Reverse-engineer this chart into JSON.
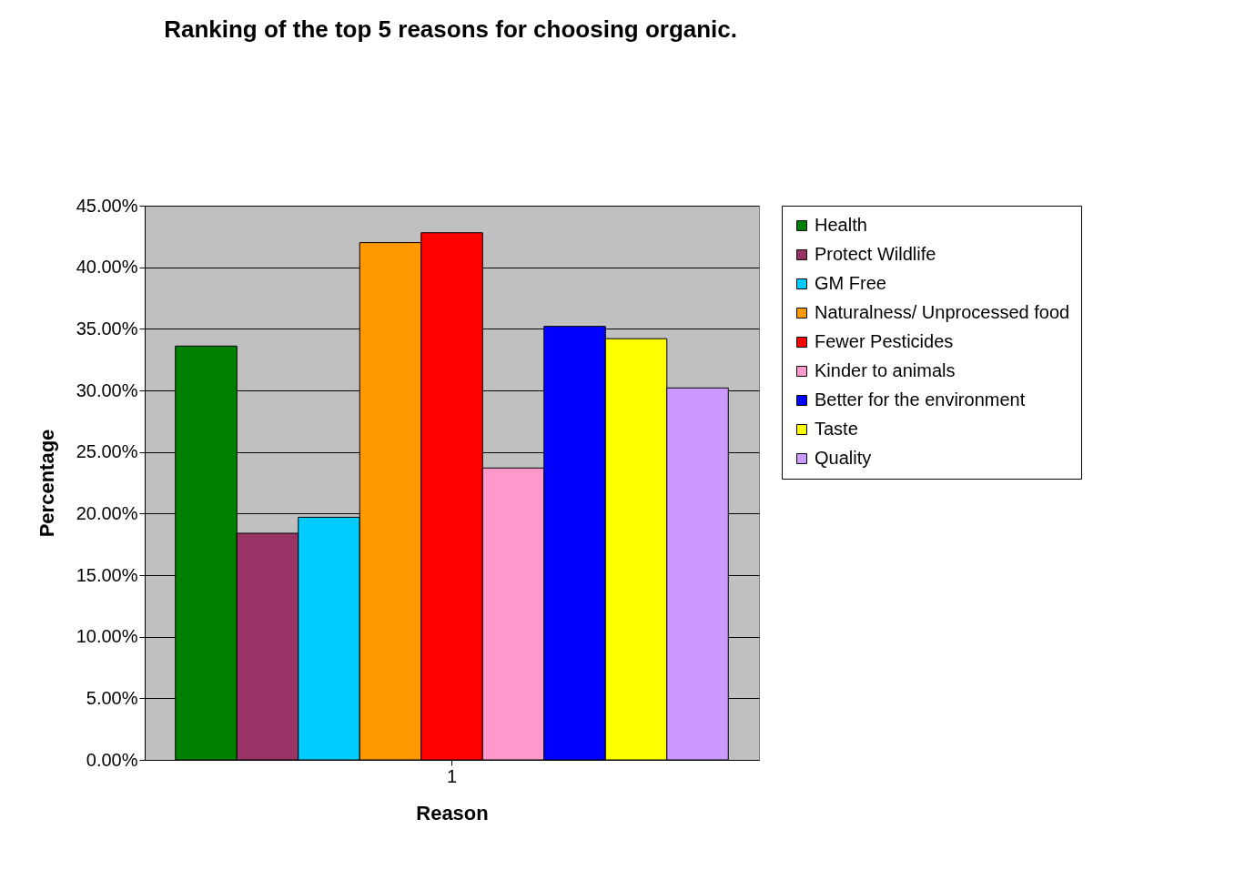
{
  "chart_data": {
    "type": "bar",
    "title": "Ranking of the top 5 reasons for choosing organic.",
    "xlabel": "Reason",
    "ylabel": "Percentage",
    "categories": [
      "1"
    ],
    "series": [
      {
        "name": "Health",
        "color": "#008000",
        "values": [
          33.6
        ]
      },
      {
        "name": "Protect Wildlife",
        "color": "#993366",
        "values": [
          18.4
        ]
      },
      {
        "name": "GM Free",
        "color": "#00ccff",
        "values": [
          19.7
        ]
      },
      {
        "name": "Naturalness/ Unprocessed food",
        "color": "#ff9900",
        "values": [
          42.0
        ]
      },
      {
        "name": "Fewer Pesticides",
        "color": "#ff0000",
        "values": [
          42.8
        ]
      },
      {
        "name": "Kinder to animals",
        "color": "#ff99cc",
        "values": [
          23.7
        ]
      },
      {
        "name": "Better for the environment",
        "color": "#0000ff",
        "values": [
          35.2
        ]
      },
      {
        "name": "Taste",
        "color": "#ffff00",
        "values": [
          34.2
        ]
      },
      {
        "name": "Quality",
        "color": "#cc99ff",
        "values": [
          30.2
        ]
      }
    ],
    "ylim": [
      0,
      45
    ],
    "yticks": [
      {
        "value": 0,
        "label": "0.00%"
      },
      {
        "value": 5,
        "label": "5.00%"
      },
      {
        "value": 10,
        "label": "10.00%"
      },
      {
        "value": 15,
        "label": "15.00%"
      },
      {
        "value": 20,
        "label": "20.00%"
      },
      {
        "value": 25,
        "label": "25.00%"
      },
      {
        "value": 30,
        "label": "30.00%"
      },
      {
        "value": 35,
        "label": "35.00%"
      },
      {
        "value": 40,
        "label": "40.00%"
      },
      {
        "value": 45,
        "label": "45.00%"
      }
    ],
    "grid": "y",
    "legend": "right"
  }
}
